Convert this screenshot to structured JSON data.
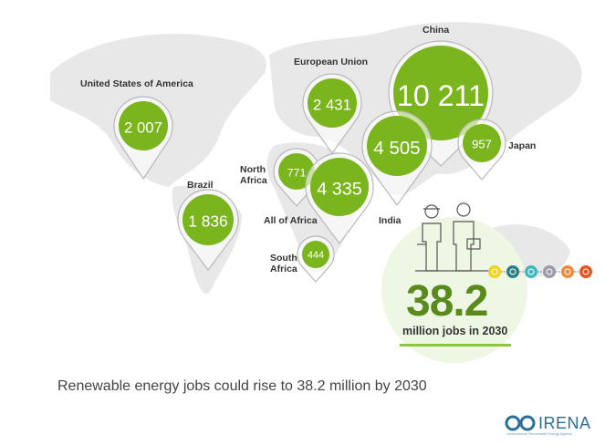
{
  "pins": [
    {
      "region": "United States of America",
      "value": "2 007"
    },
    {
      "region": "European Union",
      "value": "2 431"
    },
    {
      "region": "China",
      "value": "10 211"
    },
    {
      "region": "India",
      "value": "4 505"
    },
    {
      "region": "Japan",
      "value": "957"
    },
    {
      "region": "North Africa",
      "value": "771"
    },
    {
      "region": "All of Africa",
      "value": "4 335"
    },
    {
      "region": "Brazil",
      "value": "1 836"
    },
    {
      "region": "South Africa",
      "value": "444"
    }
  ],
  "total": {
    "value": "38.2",
    "label": "million jobs in 2030"
  },
  "caption": "Renewable energy jobs could rise to 38.2 million by 2030",
  "logo": {
    "name": "IRENA",
    "tagline": "International Renewable Energy Agency"
  },
  "colors": {
    "pin": "#7ab51d",
    "total": "#5a8a1e",
    "map": "#e6e6e6",
    "accent": "#8cc63f"
  },
  "technology_icons": [
    {
      "icon": "solar-icon",
      "color": "#f2d21b"
    },
    {
      "icon": "bioenergy-icon",
      "color": "#2a7f8a"
    },
    {
      "icon": "hydro-icon",
      "color": "#3fb8c4"
    },
    {
      "icon": "wind-icon",
      "color": "#9a9aa8"
    },
    {
      "icon": "geothermal-icon",
      "color": "#f08a3a"
    },
    {
      "icon": "ocean-icon",
      "color": "#e8541e"
    }
  ]
}
